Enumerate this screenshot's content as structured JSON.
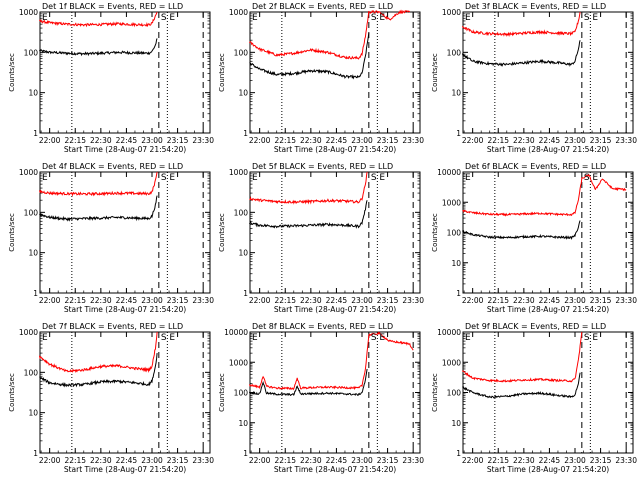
{
  "colors": {
    "events": "#000000",
    "lld": "#ff0000",
    "axis": "#000000",
    "background": "#ffffff"
  },
  "chart_data": [
    {
      "type": "line",
      "title": "Det 1f BLACK = Events, RED = LLD",
      "xlabel": "Start Time (28-Aug-07 21:54:20)",
      "ylabel": "Counts/sec",
      "yscale": "log",
      "ylim": [
        1,
        1000
      ],
      "yticks": [
        "1",
        "10",
        "100",
        "1000"
      ],
      "xlim": [
        "21:54:20",
        "23:34:00"
      ],
      "xticks": [
        "22:00",
        "22:15",
        "22:30",
        "22:45",
        "23:00",
        "23:15",
        "23:30"
      ],
      "markers": [
        "S",
        "E"
      ],
      "dotted_lines_at": [
        "22:13",
        "23:09"
      ],
      "dashed_lines_at": [
        "23:04",
        "23:30"
      ],
      "series": [
        {
          "key": "events",
          "x": [
            "21:54",
            "22:00",
            "22:10",
            "22:20",
            "22:30",
            "22:40",
            "22:50",
            "22:58",
            "23:00",
            "23:02",
            "23:03"
          ],
          "values": [
            110,
            100,
            95,
            92,
            95,
            100,
            97,
            95,
            105,
            150,
            220
          ]
        },
        {
          "key": "lld",
          "x": [
            "21:54",
            "22:00",
            "22:10",
            "22:20",
            "22:30",
            "22:40",
            "22:50",
            "22:58",
            "23:00",
            "23:02",
            "23:03"
          ],
          "values": [
            600,
            540,
            500,
            480,
            490,
            510,
            490,
            480,
            520,
            800,
            1000
          ]
        }
      ]
    },
    {
      "type": "line",
      "title": "Det 2f BLACK = Events, RED = LLD",
      "xlabel": "Start Time (28-Aug-07 21:54:20)",
      "ylabel": "Counts/sec",
      "yscale": "log",
      "ylim": [
        1,
        1000
      ],
      "yticks": [
        "1",
        "10",
        "100",
        "1000"
      ],
      "xlim": [
        "21:54:20",
        "23:34:00"
      ],
      "xticks": [
        "22:00",
        "22:15",
        "22:30",
        "22:45",
        "23:00",
        "23:15",
        "23:30"
      ],
      "markers": [
        "S",
        "E"
      ],
      "dotted_lines_at": [
        "22:13",
        "23:09"
      ],
      "dashed_lines_at": [
        "23:04",
        "23:30"
      ],
      "series": [
        {
          "key": "events",
          "x": [
            "21:54",
            "22:00",
            "22:10",
            "22:20",
            "22:30",
            "22:40",
            "22:50",
            "22:58",
            "23:00",
            "23:02",
            "23:04"
          ],
          "values": [
            55,
            38,
            28,
            30,
            35,
            33,
            25,
            24,
            30,
            80,
            300
          ]
        },
        {
          "key": "lld",
          "x": [
            "21:54",
            "22:00",
            "22:10",
            "22:20",
            "22:30",
            "22:40",
            "22:50",
            "22:58",
            "23:00",
            "23:02",
            "23:04",
            "23:10",
            "23:16",
            "23:22",
            "23:28"
          ],
          "values": [
            180,
            120,
            85,
            95,
            115,
            100,
            75,
            72,
            90,
            250,
            1000,
            1000,
            650,
            1000,
            1000
          ]
        }
      ]
    },
    {
      "type": "line",
      "title": "Det 3f BLACK = Events, RED = LLD",
      "xlabel": "Start Time (28-Aug-07 21:54:20)",
      "ylabel": "Counts/sec",
      "yscale": "log",
      "ylim": [
        1,
        1000
      ],
      "yticks": [
        "1",
        "10",
        "100",
        "1000"
      ],
      "xlim": [
        "21:54:20",
        "23:34:00"
      ],
      "xticks": [
        "22:00",
        "22:15",
        "22:30",
        "22:45",
        "23:00",
        "23:15",
        "23:30"
      ],
      "markers": [
        "S",
        "E"
      ],
      "dotted_lines_at": [
        "22:13",
        "23:09"
      ],
      "dashed_lines_at": [
        "23:04",
        "23:30"
      ],
      "series": [
        {
          "key": "events",
          "x": [
            "21:54",
            "22:00",
            "22:10",
            "22:20",
            "22:30",
            "22:40",
            "22:50",
            "22:58",
            "23:00",
            "23:02",
            "23:03"
          ],
          "values": [
            90,
            60,
            52,
            50,
            55,
            60,
            55,
            50,
            60,
            120,
            200
          ]
        },
        {
          "key": "lld",
          "x": [
            "21:54",
            "22:00",
            "22:10",
            "22:20",
            "22:30",
            "22:40",
            "22:50",
            "22:58",
            "23:00",
            "23:02",
            "23:03"
          ],
          "values": [
            430,
            320,
            290,
            280,
            300,
            320,
            300,
            290,
            320,
            600,
            1000
          ]
        }
      ]
    },
    {
      "type": "line",
      "title": "Det 4f BLACK = Events, RED = LLD",
      "xlabel": "Start Time (28-Aug-07 21:54:20)",
      "ylabel": "Counts/sec",
      "yscale": "log",
      "ylim": [
        1,
        1000
      ],
      "yticks": [
        "1",
        "10",
        "100",
        "1000"
      ],
      "xlim": [
        "21:54:20",
        "23:34:00"
      ],
      "xticks": [
        "22:00",
        "22:15",
        "22:30",
        "22:45",
        "23:00",
        "23:15",
        "23:30"
      ],
      "markers": [
        "S",
        "E"
      ],
      "dotted_lines_at": [
        "22:13",
        "23:09"
      ],
      "dashed_lines_at": [
        "23:04",
        "23:30"
      ],
      "series": [
        {
          "key": "events",
          "x": [
            "21:54",
            "22:00",
            "22:10",
            "22:20",
            "22:30",
            "22:40",
            "22:50",
            "22:58",
            "23:00",
            "23:02",
            "23:03"
          ],
          "values": [
            90,
            75,
            68,
            70,
            72,
            75,
            72,
            70,
            80,
            150,
            260
          ]
        },
        {
          "key": "lld",
          "x": [
            "21:54",
            "22:00",
            "22:10",
            "22:20",
            "22:30",
            "22:40",
            "22:50",
            "22:58",
            "23:00",
            "23:02",
            "23:03"
          ],
          "values": [
            330,
            300,
            290,
            285,
            290,
            300,
            295,
            290,
            320,
            600,
            1000
          ]
        }
      ]
    },
    {
      "type": "line",
      "title": "Det 5f BLACK = Events, RED = LLD",
      "xlabel": "Start Time (28-Aug-07 21:54:20)",
      "ylabel": "Counts/sec",
      "yscale": "log",
      "ylim": [
        1,
        1000
      ],
      "yticks": [
        "1",
        "10",
        "100",
        "1000"
      ],
      "xlim": [
        "21:54:20",
        "23:34:00"
      ],
      "xticks": [
        "22:00",
        "22:15",
        "22:30",
        "22:45",
        "23:00",
        "23:15",
        "23:30"
      ],
      "markers": [
        "S",
        "E"
      ],
      "dotted_lines_at": [
        "22:13",
        "23:09"
      ],
      "dashed_lines_at": [
        "23:04",
        "23:30"
      ],
      "series": [
        {
          "key": "events",
          "x": [
            "21:54",
            "22:00",
            "22:10",
            "22:20",
            "22:30",
            "22:40",
            "22:50",
            "22:58",
            "23:00",
            "23:02",
            "23:03"
          ],
          "values": [
            55,
            48,
            45,
            46,
            48,
            50,
            48,
            45,
            55,
            120,
            200
          ]
        },
        {
          "key": "lld",
          "x": [
            "21:54",
            "22:00",
            "22:10",
            "22:20",
            "22:30",
            "22:40",
            "22:50",
            "22:58",
            "23:00",
            "23:02",
            "23:03"
          ],
          "values": [
            220,
            200,
            185,
            180,
            185,
            195,
            190,
            180,
            220,
            500,
            1000
          ]
        }
      ]
    },
    {
      "type": "line",
      "title": "Det 6f BLACK = Events, RED = LLD",
      "xlabel": "Start Time (28-Aug-07 21:54:20)",
      "ylabel": "Counts/sec",
      "yscale": "log",
      "ylim": [
        1,
        10000
      ],
      "yticks": [
        "1",
        "10",
        "100",
        "1000",
        "10000"
      ],
      "xlim": [
        "21:54:20",
        "23:34:00"
      ],
      "xticks": [
        "22:00",
        "22:15",
        "22:30",
        "22:45",
        "23:00",
        "23:15",
        "23:30"
      ],
      "markers": [
        "S",
        "E"
      ],
      "dotted_lines_at": [
        "22:13",
        "23:09"
      ],
      "dashed_lines_at": [
        "23:04",
        "23:30"
      ],
      "series": [
        {
          "key": "events",
          "x": [
            "21:54",
            "22:00",
            "22:10",
            "22:20",
            "22:30",
            "22:40",
            "22:50",
            "22:58",
            "23:00",
            "23:02",
            "23:03"
          ],
          "values": [
            110,
            85,
            70,
            68,
            72,
            75,
            70,
            68,
            80,
            150,
            250
          ]
        },
        {
          "key": "lld",
          "x": [
            "21:54",
            "22:00",
            "22:10",
            "22:20",
            "22:30",
            "22:40",
            "22:50",
            "22:58",
            "23:00",
            "23:02",
            "23:04",
            "23:08",
            "23:12",
            "23:16",
            "23:22",
            "23:28",
            "23:30"
          ],
          "values": [
            520,
            450,
            400,
            390,
            410,
            430,
            400,
            390,
            450,
            1200,
            6000,
            8000,
            2600,
            6000,
            2800,
            2700,
            2600
          ]
        }
      ]
    },
    {
      "type": "line",
      "title": "Det 7f BLACK = Events, RED = LLD",
      "xlabel": "Start Time (28-Aug-07 21:54:20)",
      "ylabel": "Counts/sec",
      "yscale": "log",
      "ylim": [
        1,
        1000
      ],
      "yticks": [
        "1",
        "10",
        "100",
        "1000"
      ],
      "xlim": [
        "21:54:20",
        "23:34:00"
      ],
      "xticks": [
        "22:00",
        "22:15",
        "22:30",
        "22:45",
        "23:00",
        "23:15",
        "23:30"
      ],
      "markers": [
        "S",
        "E"
      ],
      "dotted_lines_at": [
        "22:13",
        "23:09"
      ],
      "dashed_lines_at": [
        "23:04",
        "23:30"
      ],
      "series": [
        {
          "key": "events",
          "x": [
            "21:54",
            "22:00",
            "22:10",
            "22:20",
            "22:30",
            "22:40",
            "22:50",
            "22:58",
            "23:00",
            "23:02",
            "23:03"
          ],
          "values": [
            75,
            55,
            48,
            50,
            58,
            60,
            55,
            50,
            60,
            140,
            300
          ]
        },
        {
          "key": "lld",
          "x": [
            "21:54",
            "22:00",
            "22:10",
            "22:20",
            "22:30",
            "22:40",
            "22:50",
            "22:58",
            "23:00",
            "23:02",
            "23:03"
          ],
          "values": [
            250,
            160,
            105,
            115,
            140,
            145,
            125,
            115,
            140,
            400,
            1000
          ]
        }
      ]
    },
    {
      "type": "line",
      "title": "Det 8f BLACK = Events, RED = LLD",
      "xlabel": "Start Time (28-Aug-07 21:54:20)",
      "ylabel": "Counts/sec",
      "yscale": "log",
      "ylim": [
        1,
        10000
      ],
      "yticks": [
        "1",
        "10",
        "100",
        "1000",
        "10000"
      ],
      "xlim": [
        "21:54:20",
        "23:34:00"
      ],
      "xticks": [
        "22:00",
        "22:15",
        "22:30",
        "22:45",
        "23:00",
        "23:15",
        "23:30"
      ],
      "markers": [
        "S",
        "E"
      ],
      "dotted_lines_at": [
        "22:13",
        "23:09"
      ],
      "dashed_lines_at": [
        "23:04",
        "23:30"
      ],
      "series": [
        {
          "key": "events",
          "x": [
            "21:54",
            "22:00",
            "22:02",
            "22:04",
            "22:10",
            "22:20",
            "22:22",
            "22:24",
            "22:30",
            "22:40",
            "22:50",
            "22:58",
            "23:00",
            "23:02",
            "23:03"
          ],
          "values": [
            100,
            90,
            220,
            95,
            88,
            85,
            160,
            90,
            92,
            95,
            90,
            85,
            100,
            250,
            600
          ]
        },
        {
          "key": "lld",
          "x": [
            "21:54",
            "22:00",
            "22:02",
            "22:04",
            "22:10",
            "22:20",
            "22:22",
            "22:24",
            "22:30",
            "22:40",
            "22:50",
            "22:58",
            "23:00",
            "23:02",
            "23:04",
            "23:10",
            "23:16",
            "23:22",
            "23:28",
            "23:30"
          ],
          "values": [
            180,
            150,
            350,
            160,
            140,
            135,
            300,
            140,
            145,
            150,
            145,
            140,
            170,
            600,
            8000,
            9000,
            5000,
            4500,
            4000,
            2500
          ]
        }
      ]
    },
    {
      "type": "line",
      "title": "Det 9f BLACK = Events, RED = LLD",
      "xlabel": "Start Time (28-Aug-07 21:54:20)",
      "ylabel": "Counts/sec",
      "yscale": "log",
      "ylim": [
        1,
        10000
      ],
      "yticks": [
        "1",
        "10",
        "100",
        "1000",
        "10000"
      ],
      "xlim": [
        "21:54:20",
        "23:34:00"
      ],
      "xticks": [
        "22:00",
        "22:15",
        "22:30",
        "22:45",
        "23:00",
        "23:15",
        "23:30"
      ],
      "markers": [
        "S",
        "E"
      ],
      "dotted_lines_at": [
        "22:13",
        "23:09"
      ],
      "dashed_lines_at": [
        "23:04",
        "23:30"
      ],
      "series": [
        {
          "key": "events",
          "x": [
            "21:54",
            "22:00",
            "22:10",
            "22:20",
            "22:30",
            "22:40",
            "22:50",
            "22:58",
            "23:00",
            "23:02",
            "23:03"
          ],
          "values": [
            150,
            100,
            70,
            75,
            90,
            95,
            80,
            72,
            85,
            200,
            450
          ]
        },
        {
          "key": "lld",
          "x": [
            "21:54",
            "22:00",
            "22:10",
            "22:20",
            "22:30",
            "22:40",
            "22:50",
            "22:58",
            "23:00",
            "23:02",
            "23:04"
          ],
          "values": [
            520,
            300,
            250,
            240,
            260,
            270,
            250,
            240,
            280,
            1200,
            10000
          ]
        }
      ]
    }
  ]
}
